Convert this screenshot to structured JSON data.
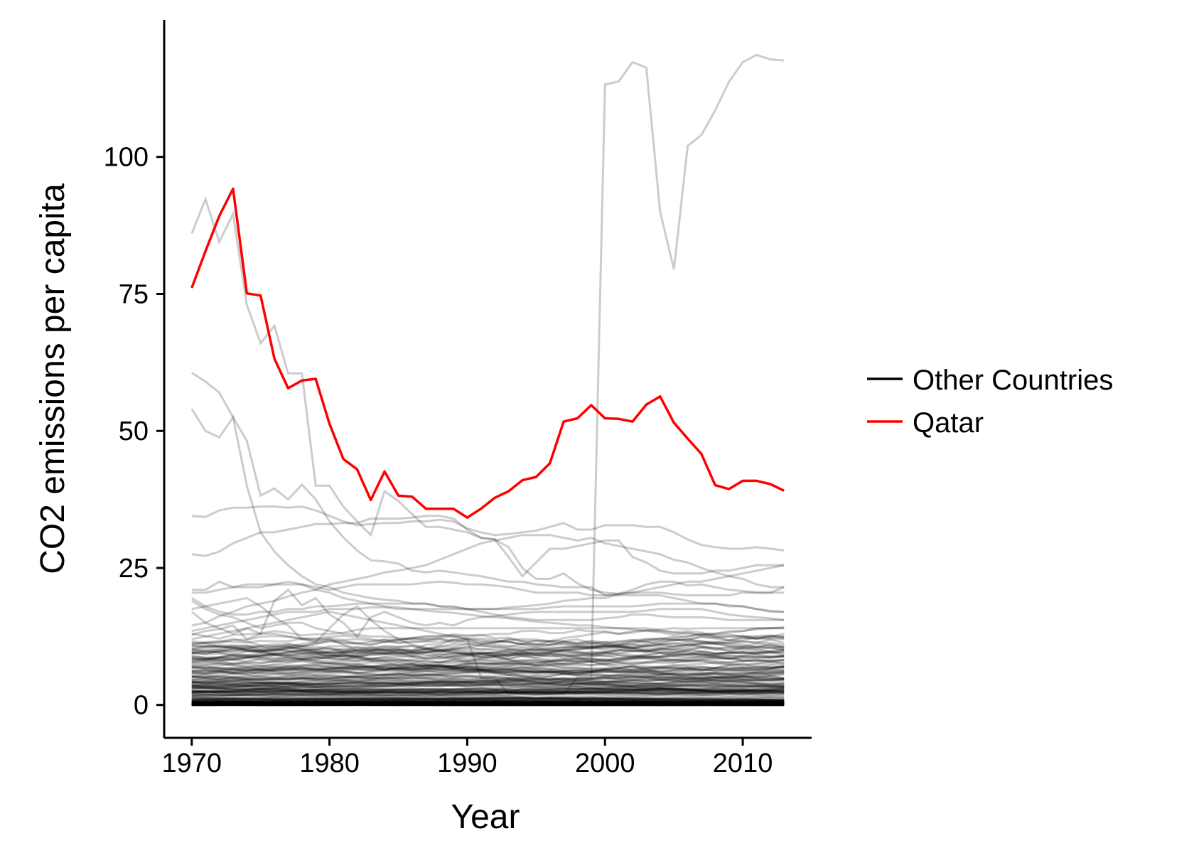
{
  "chart_data": {
    "type": "line",
    "title": "",
    "xlabel": "Year",
    "ylabel": "CO2 emissions per capita",
    "xlim": [
      1968,
      2015
    ],
    "ylim": [
      -6,
      125
    ],
    "x_ticks": [
      1970,
      1980,
      1990,
      2000,
      2010
    ],
    "y_ticks": [
      0,
      25,
      50,
      75,
      100
    ],
    "grid": false,
    "legend_position": "right",
    "legend": [
      {
        "label": "Other Countries",
        "color": "#000000"
      },
      {
        "label": "Qatar",
        "color": "#ff0000"
      }
    ],
    "highlight_series": {
      "name": "Qatar",
      "color": "#ff0000",
      "x": [
        1970,
        1971,
        1972,
        1973,
        1974,
        1975,
        1976,
        1977,
        1978,
        1979,
        1980,
        1981,
        1982,
        1983,
        1984,
        1985,
        1986,
        1987,
        1988,
        1989,
        1990,
        1991,
        1992,
        1993,
        1994,
        1995,
        1996,
        1997,
        1998,
        1999,
        2000,
        2001,
        2002,
        2003,
        2004,
        2005,
        2006,
        2007,
        2008,
        2009,
        2010,
        2011,
        2012,
        2013
      ],
      "y": [
        76.1,
        82.8,
        89.2,
        94.2,
        75.1,
        74.7,
        63.2,
        57.8,
        59.2,
        59.5,
        51.3,
        44.9,
        43.0,
        37.4,
        42.6,
        38.2,
        38.0,
        35.8,
        35.8,
        35.8,
        34.2,
        35.8,
        37.8,
        39.0,
        41.0,
        41.6,
        44.1,
        51.7,
        52.3,
        54.7,
        52.3,
        52.2,
        51.7,
        54.8,
        56.3,
        51.5,
        48.6,
        45.8,
        40.1,
        39.4,
        40.9,
        40.9,
        40.3,
        39.1
      ]
    },
    "background_series": {
      "name": "Other Countries",
      "color": "#000000",
      "x": [
        1970,
        1971,
        1972,
        1973,
        1974,
        1975,
        1976,
        1977,
        1978,
        1979,
        1980,
        1981,
        1982,
        1983,
        1984,
        1985,
        1986,
        1987,
        1988,
        1989,
        1990,
        1991,
        1992,
        1993,
        1994,
        1995,
        1996,
        1997,
        1998,
        1999,
        2000,
        2001,
        2002,
        2003,
        2004,
        2005,
        2006,
        2007,
        2008,
        2009,
        2010,
        2011,
        2012,
        2013
      ],
      "series": [
        [
          86,
          92.3,
          84.5,
          89.6,
          73,
          66,
          69.2,
          60.5,
          60.5,
          40,
          40,
          36.2,
          33.5,
          31,
          39,
          37.2,
          34.8,
          32.5,
          32.5,
          32,
          31.5,
          30.5,
          30.2,
          28.8,
          25,
          23,
          23,
          24,
          22.2,
          21,
          20.5,
          20.3,
          21,
          22,
          22.5,
          22.5,
          21.8,
          22,
          21.5,
          21,
          20.8,
          20.5,
          20.5,
          21.5
        ],
        [
          17,
          15,
          14,
          13,
          14,
          13,
          13,
          12.5,
          12,
          12,
          12,
          11,
          10,
          10,
          10,
          10,
          10,
          11,
          11,
          12,
          12,
          5,
          5,
          2,
          2,
          2,
          2,
          2,
          5,
          5,
          113.2,
          113.8,
          117.3,
          116.3,
          90,
          79.5,
          102,
          104,
          108.5,
          113.7,
          117.3,
          118.6,
          117.8,
          117.6
        ],
        [
          60.6,
          59,
          57,
          52.5,
          48.2,
          38.2,
          39.5,
          37.5,
          40.2,
          37.5,
          33.5,
          30.6,
          28.2,
          26.4,
          26.2,
          25.8,
          24.5,
          24.2,
          24.5,
          24.2,
          23.8,
          23.5,
          23,
          22.5,
          22.5,
          22,
          21.8,
          21.5,
          21.5,
          21.5,
          20,
          20,
          20,
          20,
          20,
          19.5,
          19,
          18.5,
          18.5,
          18,
          18,
          17.5,
          17.2,
          17
        ],
        [
          54,
          50,
          48.8,
          52.5,
          40,
          31.5,
          28,
          25.5,
          23.5,
          22,
          21.5,
          20.5,
          20,
          19.5,
          19.2,
          19,
          18.5,
          18.5,
          18,
          18,
          17.5,
          17.5,
          17.5,
          17.8,
          18,
          18.2,
          18.5,
          19,
          19.2,
          19.5,
          19.5,
          20.2,
          20.5,
          20.5,
          20.5,
          20.2,
          20,
          20,
          20,
          20,
          20.5,
          20.5,
          20.5,
          20.5
        ],
        [
          34.5,
          34.3,
          35.5,
          36,
          36,
          36.2,
          36.2,
          36,
          36.2,
          35.5,
          34.5,
          33.5,
          32.8,
          33,
          33.2,
          33.2,
          33.5,
          33.5,
          33.8,
          33.5,
          32.2,
          31.5,
          31,
          31.2,
          31.5,
          31.8,
          32.5,
          33.2,
          32,
          32,
          32.8,
          32.8,
          32.8,
          32.5,
          32.5,
          31.5,
          30.2,
          29.2,
          28.8,
          28.5,
          28.5,
          28.8,
          28.5,
          28.2
        ],
        [
          27.5,
          27.2,
          28,
          29.5,
          30.5,
          31.5,
          31.5,
          32,
          32.5,
          33,
          33,
          33.2,
          33.2,
          34,
          34,
          34,
          34.2,
          34.5,
          34.5,
          34,
          32,
          30.5,
          30.2,
          27,
          23.5,
          26,
          28.5,
          28.5,
          29,
          29.5,
          30,
          30,
          27,
          26,
          24.5,
          24,
          24,
          24,
          24.5,
          24.5,
          25,
          25.5,
          25.5,
          25.5
        ],
        [
          21,
          21,
          22.5,
          21.5,
          21.5,
          21.5,
          22,
          22,
          22,
          21.5,
          21,
          21.5,
          22,
          22,
          22,
          22,
          22,
          22.3,
          22.5,
          22.3,
          22,
          22,
          21.8,
          21.5,
          21,
          20.5,
          20.5,
          20.5,
          20.5,
          20,
          20,
          20.3,
          20.5,
          21,
          21.5,
          22,
          22.5,
          22.5,
          23,
          23.5,
          24,
          24.5,
          25,
          25.5
        ],
        [
          20.5,
          20.5,
          21,
          21.5,
          22,
          22,
          22,
          22.5,
          22,
          21,
          20.5,
          19.5,
          19,
          18.5,
          18,
          17.8,
          17.5,
          17.5,
          17.5,
          17.5,
          17.5,
          17.5,
          17.5,
          17.5,
          17.5,
          17.5,
          17.8,
          18,
          18,
          18,
          18,
          18,
          18,
          18.2,
          18.5,
          18.5,
          18.5,
          18.5,
          18.5,
          18.2,
          18,
          17.5,
          17,
          17
        ],
        [
          19.5,
          18,
          17,
          16.5,
          16.5,
          17,
          17,
          17.5,
          17.5,
          18,
          18,
          18.2,
          18.5,
          18.5,
          18.5,
          18.5,
          18.5,
          18.5,
          18,
          17.8,
          17.5,
          17,
          16.5,
          16,
          15.8,
          15.5,
          15.5,
          15.5,
          15.5,
          15.5,
          15.8,
          16,
          16.5,
          16.5,
          16.2,
          16,
          16,
          16,
          15.8,
          15.5,
          15.5,
          15.5,
          15.5,
          15.5
        ],
        [
          19,
          17.5,
          16.5,
          16,
          15,
          14,
          14.5,
          15,
          15,
          14,
          13.5,
          13,
          12.8,
          12.5,
          12.5,
          12.2,
          12,
          12,
          12,
          11.8,
          11.5,
          11.2,
          11,
          10.8,
          10.5,
          10.5,
          10.5,
          10.5,
          10.5,
          10.5,
          10.5,
          10.5,
          10.5,
          10.8,
          11,
          11.2,
          11.5,
          11.5,
          11.5,
          11.2,
          11,
          10.5,
          10.5,
          10
        ],
        [
          12.8,
          13.5,
          13.8,
          14.5,
          12,
          13,
          19,
          21,
          18.2,
          19.5,
          16.5,
          15,
          12.5,
          16,
          17,
          16,
          15,
          14.5,
          15,
          14.5,
          15.5,
          16,
          16.2,
          16.5,
          16.8,
          17,
          17,
          17,
          17,
          17,
          17,
          17,
          17,
          17.2,
          17.5,
          17.5,
          17.5,
          17.5,
          17,
          16.5,
          16.2,
          16,
          15.8,
          15.5
        ],
        [
          14.5,
          15,
          16.2,
          17,
          18,
          18.5,
          19,
          19.8,
          20.5,
          21,
          22,
          22.5,
          23,
          23.5,
          24.2,
          24.5,
          25,
          25.5,
          26.5,
          27.5,
          28.5,
          29.5,
          30,
          30.5,
          31,
          31,
          31,
          30.5,
          30,
          30.5,
          29.5,
          29,
          28.5,
          28,
          27.5,
          26.5,
          26,
          25,
          24.2,
          23.5,
          23,
          22,
          21.5,
          21.5
        ],
        [
          17.5,
          18,
          18.5,
          19,
          19.5,
          18,
          16,
          14.5,
          12,
          11.5,
          14,
          16.5,
          18,
          15.5,
          13.5,
          12,
          11,
          10.5,
          10,
          10,
          9.5,
          9.5,
          9,
          9,
          9.5,
          9.5,
          9.5,
          10,
          10,
          10.5,
          11,
          11,
          11.5,
          12,
          12,
          12.5,
          12.5,
          13,
          13,
          13.5,
          13.5,
          14,
          14,
          14
        ],
        [
          13.5,
          14,
          14.5,
          15,
          15.5,
          16,
          16.5,
          17,
          17,
          17,
          17.5,
          17.5,
          17.5,
          17.8,
          17.8,
          17.5,
          17.5,
          17.2,
          17,
          16.8,
          16.5,
          16.2,
          16,
          15.8,
          15.5,
          15.2,
          15,
          14.8,
          14.5,
          14.5,
          14.2,
          14,
          13.8,
          13.5,
          13.5,
          13.2,
          13,
          12.8,
          12.5,
          12.5,
          12.5,
          12.2,
          12,
          12
        ],
        [
          12,
          12.5,
          13,
          13.5,
          14,
          14.5,
          15,
          15.5,
          16,
          16.5,
          17,
          16.5,
          16,
          15.5,
          15,
          14.5,
          14,
          13.5,
          13,
          12.5,
          12,
          11.8,
          11.5,
          11.5,
          11.2,
          11,
          11,
          11,
          11,
          11.2,
          11.5,
          11.5,
          11.8,
          12,
          12,
          12.2,
          12.5,
          12.8,
          13,
          13.2,
          13.5,
          13.8,
          14,
          14.2
        ]
      ],
      "band": {
        "min": 0,
        "max": 13,
        "count": 140
      }
    }
  }
}
